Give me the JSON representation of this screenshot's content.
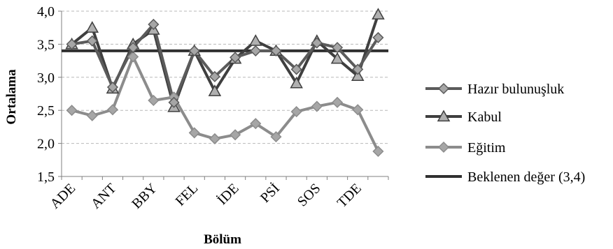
{
  "chart_data": {
    "type": "line",
    "title": "",
    "xlabel": "Bölüm",
    "ylabel": "Ortalama",
    "ylim": [
      1.5,
      4.0
    ],
    "ytick_step": 0.5,
    "ytick_labels": [
      "1,5",
      "2,0",
      "2,5",
      "3,0",
      "3,5",
      "4,0"
    ],
    "grid": true,
    "legend_position": "right",
    "x": [
      "ADE",
      "",
      "ANT",
      "",
      "BBY",
      "",
      "FEL",
      "",
      "İDE",
      "",
      "PSİ",
      "",
      "SOS",
      "",
      "TDE",
      ""
    ],
    "x_tick_labels": [
      "ADE",
      "ANT",
      "BBY",
      "FEL",
      "İDE",
      "PSİ",
      "SOS",
      "TDE"
    ],
    "series": [
      {
        "name": "Hazır bulunuşluk",
        "marker": "diamond",
        "color": "#5b5b5b",
        "values": [
          3.5,
          3.55,
          2.85,
          3.45,
          3.8,
          2.62,
          3.4,
          3.01,
          3.3,
          3.4,
          3.4,
          3.12,
          3.52,
          3.45,
          3.12,
          3.6
        ]
      },
      {
        "name": "Kabul",
        "marker": "triangle",
        "color": "#3f3f3f",
        "values": [
          3.5,
          3.75,
          2.83,
          3.5,
          3.72,
          2.55,
          3.4,
          2.79,
          3.28,
          3.55,
          3.4,
          2.91,
          3.55,
          3.28,
          3.02,
          3.95
        ]
      },
      {
        "name": "Eğitim",
        "marker": "diamond",
        "color": "#8c8c8c",
        "values": [
          2.5,
          2.42,
          2.51,
          3.31,
          2.65,
          2.7,
          2.16,
          2.07,
          2.13,
          2.3,
          2.1,
          2.48,
          2.56,
          2.62,
          2.51,
          1.88
        ]
      },
      {
        "name": "Beklenen değer (3,4)",
        "marker": "none",
        "color": "#303030",
        "constant": 3.4
      }
    ]
  }
}
